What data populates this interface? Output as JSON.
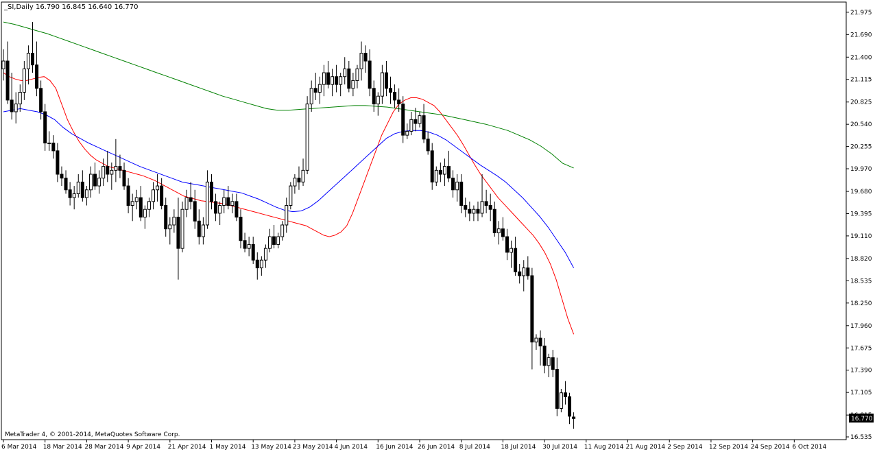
{
  "chart_data": {
    "type": "candlestick",
    "title": "_SI,Daily  16.790 16.845 16.640 16.770",
    "footer": "MetaTrader 4, © 2001-2014, MetaQuotes Software Corp.",
    "current_price_label": "16.770",
    "ylim": [
      16.535,
      22.0
    ],
    "y_ticks": [
      "21.975",
      "21.690",
      "21.400",
      "21.115",
      "20.825",
      "20.540",
      "20.255",
      "19.970",
      "19.680",
      "19.395",
      "19.110",
      "18.820",
      "18.535",
      "18.250",
      "17.960",
      "17.675",
      "17.390",
      "17.105",
      "16.815",
      "16.535"
    ],
    "x_ticks": [
      "6 Mar 2014",
      "18 Mar 2014",
      "28 Mar 2014",
      "9 Apr 2014",
      "21 Apr 2014",
      "1 May 2014",
      "13 May 2014",
      "23 May 2014",
      "4 Jun 2014",
      "16 Jun 2014",
      "26 Jun 2014",
      "8 Jul 2014",
      "18 Jul 2014",
      "30 Jul 2014",
      "11 Aug 2014",
      "21 Aug 2014",
      "2 Sep 2014",
      "12 Sep 2014",
      "24 Sep 2014",
      "6 Oct 2014"
    ],
    "x_tick_bar_index": [
      0,
      10,
      20,
      30,
      40,
      50,
      60,
      70,
      80,
      90,
      100,
      110,
      120,
      130,
      140,
      150,
      160,
      170,
      180,
      190
    ],
    "candles": [
      [
        21.25,
        21.5,
        21.1,
        21.35
      ],
      [
        21.35,
        21.6,
        20.8,
        20.85
      ],
      [
        20.85,
        21.2,
        20.6,
        20.7
      ],
      [
        20.7,
        20.95,
        20.55,
        20.8
      ],
      [
        20.8,
        21.05,
        20.7,
        20.95
      ],
      [
        20.95,
        21.35,
        20.85,
        21.25
      ],
      [
        21.25,
        21.55,
        21.05,
        21.45
      ],
      [
        21.45,
        21.85,
        21.2,
        21.3
      ],
      [
        21.3,
        21.6,
        20.9,
        21.0
      ],
      [
        21.0,
        21.1,
        20.6,
        20.7
      ],
      [
        20.7,
        20.8,
        20.2,
        20.3
      ],
      [
        20.3,
        20.45,
        20.2,
        20.3
      ],
      [
        20.3,
        20.4,
        20.1,
        20.2
      ],
      [
        20.2,
        20.3,
        19.8,
        19.9
      ],
      [
        19.9,
        20.0,
        19.75,
        19.85
      ],
      [
        19.85,
        19.95,
        19.65,
        19.7
      ],
      [
        19.7,
        19.8,
        19.5,
        19.6
      ],
      [
        19.6,
        19.75,
        19.45,
        19.65
      ],
      [
        19.65,
        19.9,
        19.6,
        19.8
      ],
      [
        19.8,
        19.95,
        19.55,
        19.6
      ],
      [
        19.6,
        19.75,
        19.5,
        19.7
      ],
      [
        19.7,
        20.0,
        19.6,
        19.9
      ],
      [
        19.9,
        20.05,
        19.7,
        19.75
      ],
      [
        19.75,
        19.95,
        19.65,
        19.85
      ],
      [
        19.85,
        20.1,
        19.75,
        20.0
      ],
      [
        20.0,
        20.2,
        19.8,
        19.9
      ],
      [
        19.9,
        20.05,
        19.7,
        19.95
      ],
      [
        19.95,
        20.35,
        19.8,
        20.0
      ],
      [
        20.0,
        20.15,
        19.85,
        19.95
      ],
      [
        19.95,
        20.05,
        19.7,
        19.75
      ],
      [
        19.75,
        19.85,
        19.4,
        19.5
      ],
      [
        19.5,
        19.65,
        19.3,
        19.55
      ],
      [
        19.55,
        19.7,
        19.45,
        19.6
      ],
      [
        19.6,
        19.75,
        19.3,
        19.35
      ],
      [
        19.35,
        19.5,
        19.2,
        19.45
      ],
      [
        19.45,
        19.6,
        19.35,
        19.55
      ],
      [
        19.55,
        19.8,
        19.45,
        19.7
      ],
      [
        19.7,
        19.9,
        19.55,
        19.75
      ],
      [
        19.75,
        19.85,
        19.45,
        19.5
      ],
      [
        19.5,
        19.6,
        19.1,
        19.2
      ],
      [
        19.2,
        19.35,
        19.0,
        19.25
      ],
      [
        19.25,
        19.45,
        19.15,
        19.35
      ],
      [
        19.35,
        19.6,
        18.55,
        18.95
      ],
      [
        18.95,
        19.55,
        18.9,
        19.45
      ],
      [
        19.45,
        19.7,
        19.35,
        19.6
      ],
      [
        19.6,
        19.8,
        19.45,
        19.55
      ],
      [
        19.55,
        19.7,
        19.2,
        19.3
      ],
      [
        19.3,
        19.45,
        19.0,
        19.1
      ],
      [
        19.1,
        19.35,
        19.0,
        19.25
      ],
      [
        19.25,
        19.95,
        19.2,
        19.8
      ],
      [
        19.8,
        19.9,
        19.45,
        19.55
      ],
      [
        19.55,
        19.65,
        19.3,
        19.4
      ],
      [
        19.4,
        19.55,
        19.25,
        19.5
      ],
      [
        19.5,
        19.7,
        19.4,
        19.6
      ],
      [
        19.6,
        19.75,
        19.45,
        19.5
      ],
      [
        19.5,
        19.65,
        19.4,
        19.55
      ],
      [
        19.55,
        19.65,
        19.3,
        19.35
      ],
      [
        19.35,
        19.45,
        18.95,
        19.05
      ],
      [
        19.05,
        19.15,
        18.9,
        18.95
      ],
      [
        18.95,
        19.1,
        18.85,
        19.0
      ],
      [
        19.0,
        19.1,
        18.75,
        18.8
      ],
      [
        18.8,
        18.9,
        18.55,
        18.7
      ],
      [
        18.7,
        18.85,
        18.6,
        18.8
      ],
      [
        18.8,
        19.0,
        18.7,
        18.95
      ],
      [
        18.95,
        19.2,
        18.9,
        19.1
      ],
      [
        19.1,
        19.25,
        18.95,
        19.0
      ],
      [
        19.0,
        19.15,
        18.95,
        19.1
      ],
      [
        19.1,
        19.3,
        19.05,
        19.25
      ],
      [
        19.25,
        19.6,
        19.15,
        19.5
      ],
      [
        19.5,
        19.8,
        19.45,
        19.75
      ],
      [
        19.75,
        19.9,
        19.65,
        19.85
      ],
      [
        19.85,
        20.0,
        19.7,
        19.8
      ],
      [
        19.8,
        20.1,
        19.75,
        19.95
      ],
      [
        19.95,
        20.9,
        19.9,
        20.8
      ],
      [
        20.8,
        21.1,
        20.7,
        21.0
      ],
      [
        21.0,
        21.2,
        20.85,
        20.95
      ],
      [
        20.95,
        21.15,
        20.8,
        21.05
      ],
      [
        21.05,
        21.3,
        20.9,
        21.2
      ],
      [
        21.2,
        21.35,
        21.0,
        21.05
      ],
      [
        21.05,
        21.25,
        20.9,
        21.15
      ],
      [
        21.15,
        21.3,
        20.95,
        21.05
      ],
      [
        21.05,
        21.2,
        20.9,
        21.15
      ],
      [
        21.15,
        21.4,
        21.05,
        21.25
      ],
      [
        21.25,
        21.35,
        20.95,
        21.0
      ],
      [
        21.0,
        21.2,
        20.9,
        21.1
      ],
      [
        21.1,
        21.3,
        21.0,
        21.25
      ],
      [
        21.25,
        21.6,
        21.1,
        21.45
      ],
      [
        21.45,
        21.55,
        21.2,
        21.35
      ],
      [
        21.35,
        21.5,
        20.9,
        21.0
      ],
      [
        21.0,
        21.1,
        20.7,
        20.8
      ],
      [
        20.8,
        20.95,
        20.65,
        20.9
      ],
      [
        20.9,
        21.3,
        20.8,
        21.2
      ],
      [
        21.2,
        21.35,
        20.9,
        21.0
      ],
      [
        21.0,
        21.15,
        20.8,
        20.95
      ],
      [
        20.95,
        21.05,
        20.75,
        20.85
      ],
      [
        20.85,
        21.0,
        20.7,
        20.8
      ],
      [
        20.8,
        20.9,
        20.3,
        20.4
      ],
      [
        20.4,
        20.55,
        20.35,
        20.45
      ],
      [
        20.45,
        20.7,
        20.4,
        20.6
      ],
      [
        20.6,
        20.75,
        20.45,
        20.55
      ],
      [
        20.55,
        20.7,
        20.5,
        20.65
      ],
      [
        20.65,
        20.8,
        20.3,
        20.35
      ],
      [
        20.35,
        20.45,
        20.15,
        20.2
      ],
      [
        20.2,
        20.3,
        19.7,
        19.8
      ],
      [
        19.8,
        20.0,
        19.75,
        19.95
      ],
      [
        19.95,
        20.05,
        19.8,
        19.9
      ],
      [
        19.9,
        20.1,
        19.75,
        20.0
      ],
      [
        20.0,
        20.2,
        19.8,
        19.85
      ],
      [
        19.85,
        19.95,
        19.6,
        19.7
      ],
      [
        19.7,
        19.9,
        19.55,
        19.8
      ],
      [
        19.8,
        19.9,
        19.4,
        19.5
      ],
      [
        19.5,
        19.6,
        19.35,
        19.45
      ],
      [
        19.45,
        19.55,
        19.3,
        19.4
      ],
      [
        19.4,
        19.5,
        19.3,
        19.45
      ],
      [
        19.45,
        19.55,
        19.3,
        19.4
      ],
      [
        19.4,
        19.9,
        19.35,
        19.55
      ],
      [
        19.55,
        19.7,
        19.4,
        19.5
      ],
      [
        19.5,
        19.65,
        19.3,
        19.45
      ],
      [
        19.45,
        19.55,
        19.1,
        19.15
      ],
      [
        19.15,
        19.3,
        19.0,
        19.2
      ],
      [
        19.2,
        19.35,
        19.05,
        19.1
      ],
      [
        19.1,
        19.2,
        18.8,
        18.9
      ],
      [
        18.9,
        19.05,
        18.7,
        18.95
      ],
      [
        18.95,
        19.1,
        18.6,
        18.65
      ],
      [
        18.65,
        18.75,
        18.5,
        18.6
      ],
      [
        18.6,
        18.8,
        18.4,
        18.7
      ],
      [
        18.7,
        18.85,
        18.55,
        18.6
      ],
      [
        18.6,
        18.7,
        17.4,
        17.75
      ],
      [
        17.75,
        17.85,
        17.65,
        17.8
      ],
      [
        17.8,
        17.9,
        17.45,
        17.7
      ],
      [
        17.7,
        17.8,
        17.35,
        17.45
      ],
      [
        17.45,
        17.6,
        17.3,
        17.55
      ],
      [
        17.55,
        17.65,
        17.3,
        17.4
      ],
      [
        17.4,
        17.55,
        16.8,
        16.9
      ],
      [
        16.9,
        17.15,
        16.85,
        17.1
      ],
      [
        17.1,
        17.25,
        16.95,
        17.05
      ],
      [
        17.05,
        17.1,
        16.7,
        16.8
      ],
      [
        16.79,
        16.85,
        16.64,
        16.77
      ]
    ],
    "moving_averages": [
      {
        "color": "#ff0000",
        "values": [
          21.2,
          21.15,
          21.12,
          21.1,
          21.1,
          21.12,
          21.14,
          21.15,
          21.1,
          21.0,
          20.8,
          20.6,
          20.45,
          20.32,
          20.22,
          20.14,
          20.08,
          20.04,
          20.0,
          19.98,
          19.96,
          19.94,
          19.92,
          19.9,
          19.88,
          19.85,
          19.82,
          19.78,
          19.74,
          19.7,
          19.66,
          19.62,
          19.6,
          19.58,
          19.56,
          19.55,
          19.54,
          19.53,
          19.52,
          19.5,
          19.48,
          19.46,
          19.44,
          19.42,
          19.4,
          19.38,
          19.36,
          19.34,
          19.32,
          19.3,
          19.28,
          19.26,
          19.24,
          19.2,
          19.16,
          19.12,
          19.1,
          19.12,
          19.16,
          19.24,
          19.4,
          19.6,
          19.8,
          20.0,
          20.2,
          20.4,
          20.55,
          20.7,
          20.8,
          20.85,
          20.88,
          20.88,
          20.86,
          20.82,
          20.78,
          20.7,
          20.6,
          20.5,
          20.4,
          20.28,
          20.15,
          20.02,
          19.9,
          19.8,
          19.7,
          19.6,
          19.52,
          19.44,
          19.36,
          19.28,
          19.2,
          19.12,
          19.02,
          18.9,
          18.75,
          18.55,
          18.3,
          18.05,
          17.85
        ]
      },
      {
        "color": "#0000ff",
        "values": [
          20.7,
          20.72,
          20.74,
          20.72,
          20.7,
          20.66,
          20.6,
          20.5,
          20.42,
          20.36,
          20.3,
          20.25,
          20.2,
          20.15,
          20.1,
          20.05,
          20.0,
          19.96,
          19.92,
          19.88,
          19.84,
          19.8,
          19.78,
          19.76,
          19.74,
          19.72,
          19.7,
          19.68,
          19.66,
          19.62,
          19.58,
          19.53,
          19.48,
          19.44,
          19.42,
          19.43,
          19.48,
          19.56,
          19.66,
          19.76,
          19.86,
          19.96,
          20.06,
          20.16,
          20.26,
          20.36,
          20.42,
          20.45,
          20.46,
          20.46,
          20.44,
          20.4,
          20.34,
          20.26,
          20.18,
          20.1,
          20.02,
          19.95,
          19.88,
          19.8,
          19.7,
          19.6,
          19.48,
          19.36,
          19.22,
          19.06,
          18.9,
          18.7
        ]
      },
      {
        "color": "#008000",
        "values": [
          21.85,
          21.82,
          21.78,
          21.74,
          21.7,
          21.65,
          21.6,
          21.55,
          21.5,
          21.45,
          21.4,
          21.35,
          21.3,
          21.25,
          21.2,
          21.15,
          21.1,
          21.05,
          21.0,
          20.95,
          20.9,
          20.86,
          20.82,
          20.78,
          20.74,
          20.72,
          20.72,
          20.73,
          20.74,
          20.75,
          20.76,
          20.77,
          20.78,
          20.78,
          20.77,
          20.76,
          20.74,
          20.72,
          20.7,
          20.68,
          20.66,
          20.63,
          20.6,
          20.57,
          20.54,
          20.5,
          20.46,
          20.4,
          20.34,
          20.26,
          20.16,
          20.04,
          19.98
        ]
      }
    ]
  }
}
